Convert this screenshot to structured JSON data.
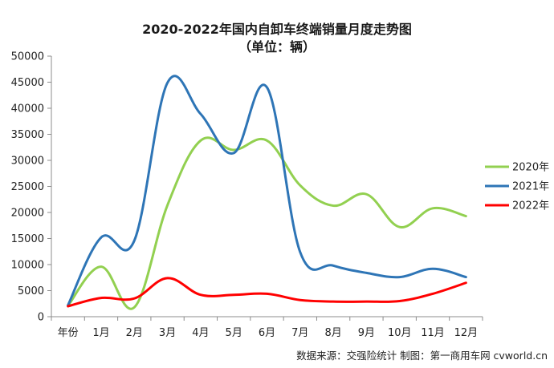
{
  "chart_data": {
    "type": "line",
    "title": "2020-2022年国内自卸车终端销量月度走势图",
    "subtitle": "（单位：辆）",
    "categories": [
      "年份",
      "1月",
      "2月",
      "3月",
      "4月",
      "5月",
      "6月",
      "7月",
      "8月",
      "9月",
      "10月",
      "11月",
      "12月"
    ],
    "y_ticks": [
      "0",
      "5000",
      "10000",
      "15000",
      "20000",
      "25000",
      "30000",
      "35000",
      "40000",
      "45000",
      "50000"
    ],
    "ylim": [
      0,
      50000
    ],
    "grid": false,
    "legend_position": "right",
    "series": [
      {
        "name": "2020年",
        "color": "#92d050",
        "values": [
          2100,
          9600,
          1800,
          21400,
          33800,
          32000,
          33800,
          25200,
          21300,
          23500,
          17200,
          20800,
          19300
        ]
      },
      {
        "name": "2021年",
        "color": "#2e75b6",
        "values": [
          2200,
          15200,
          14600,
          44900,
          38900,
          31400,
          44000,
          12400,
          9800,
          8400,
          7600,
          9200,
          7600
        ]
      },
      {
        "name": "2022年",
        "color": "#ff0000",
        "values": [
          2000,
          3600,
          3500,
          7400,
          4200,
          4200,
          4400,
          3200,
          2900,
          2900,
          3000,
          4400,
          6500
        ]
      }
    ],
    "source_note": "数据来源：交强险统计  制图：第一商用车网 cvworld.cn"
  }
}
